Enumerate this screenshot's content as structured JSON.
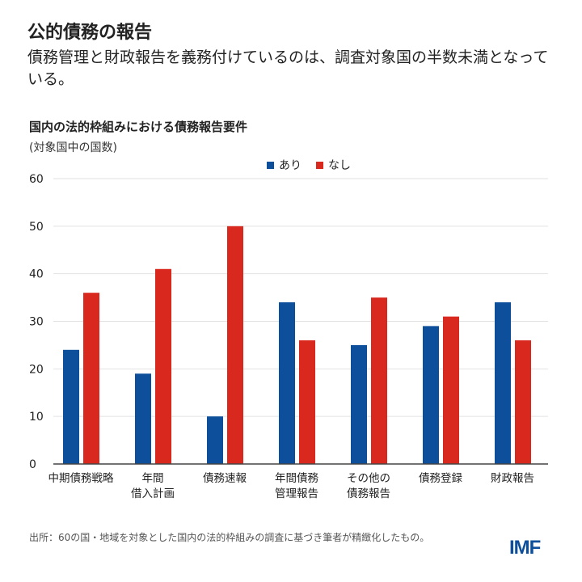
{
  "title": "公的債務の報告",
  "subtitle": "債務管理と財政報告を義務付けているのは、調査対象国の半数未満となっている。",
  "chart_data": {
    "type": "bar",
    "title": "国内の法的枠組みにおける債務報告要件",
    "subtitle": "(対象国中の国数)",
    "categories": [
      [
        "中期債務戦略"
      ],
      [
        "年間",
        "借入計画"
      ],
      [
        "債務速報"
      ],
      [
        "年間債務",
        "管理報告"
      ],
      [
        "その他の",
        "債務報告"
      ],
      [
        "債務登録"
      ],
      [
        "財政報告"
      ]
    ],
    "series": [
      {
        "name": "あり",
        "color": "#0d4f9a",
        "values": [
          24,
          19,
          10,
          34,
          25,
          29,
          34
        ]
      },
      {
        "name": "なし",
        "color": "#d9291f",
        "values": [
          36,
          41,
          50,
          26,
          35,
          31,
          26
        ]
      }
    ],
    "ylim": [
      0,
      60
    ],
    "yticks": [
      0,
      10,
      20,
      30,
      40,
      50,
      60
    ],
    "grid": true,
    "legend_position": "top-center"
  },
  "source": "出所：60の国・地域を対象とした国内の法的枠組みの調査に基づき筆者が精緻化したもの。",
  "logo": "IMF"
}
